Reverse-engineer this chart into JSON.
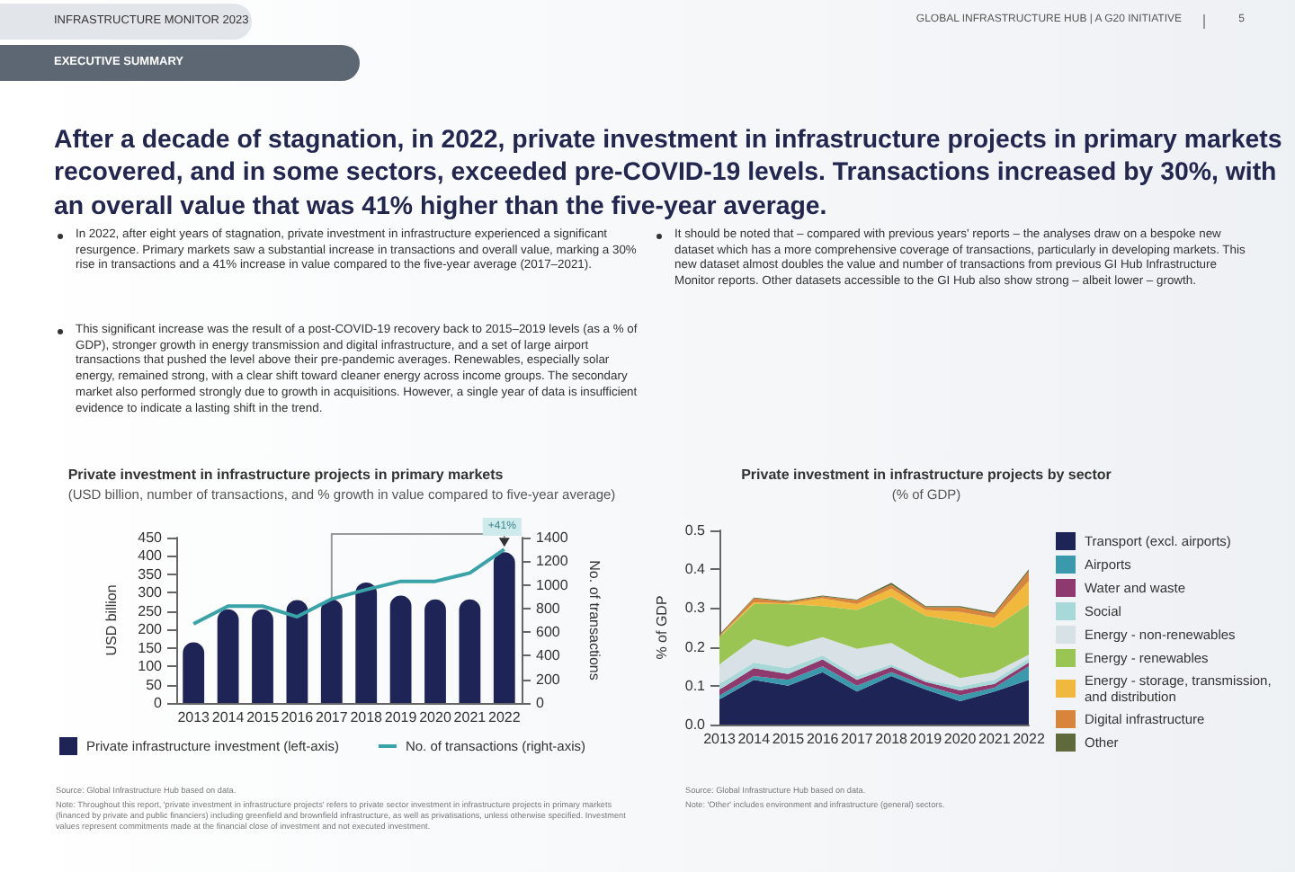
{
  "chart_data": [
    {
      "type": "bar",
      "title": "Private investment in infrastructure projects in primary markets",
      "subtitle": "(USD billion, number of transactions, and % growth in value compared to five-year average)",
      "ylabel": "USD billion",
      "y2label": "No. of transactions",
      "categories": [
        "2013",
        "2014",
        "2015",
        "2016",
        "2017",
        "2018",
        "2019",
        "2020",
        "2021",
        "2022"
      ],
      "series": [
        {
          "type": "bar",
          "name": "Private infrastructure investment (left-axis)",
          "color": "#1f2456",
          "values": [
            165,
            255,
            255,
            280,
            282,
            328,
            292,
            282,
            282,
            410
          ]
        },
        {
          "type": "line",
          "axis": "y2",
          "name": "No. of transactions (right-axis)",
          "color": "#3aa3a8",
          "values": [
            670,
            820,
            820,
            730,
            880,
            960,
            1030,
            1030,
            1100,
            1300
          ]
        }
      ],
      "ylim": [
        0,
        450
      ],
      "yticks": [
        0,
        50,
        100,
        150,
        200,
        250,
        300,
        350,
        400,
        450
      ],
      "y2lim": [
        0,
        1400
      ],
      "y2ticks": [
        0,
        200,
        400,
        600,
        800,
        1000,
        1200,
        1400
      ],
      "grid": false,
      "legend": "bottom",
      "marker": "none",
      "line_style": "solid",
      "annotations": [
        "INFRASTRUCTURE MONITOR 2023",
        "GLOBAL INFRASTRUCTURE HUB | A G20 INITIATIVE",
        "5",
        "EXECUTIVE SUMMARY",
        "After a decade of stagnation, in 2022, private investment in infrastructure projects in primary markets recovered, and in some sectors, exceeded pre-COVID-19 levels. Transactions increased by 30%, with an overall value that was 41% higher than the five-year average.",
        "In 2022, after eight years of stagnation, private investment in infrastructure experienced a significant resurgence. Primary markets saw a substantial increase in transactions and overall value, marking a 30% rise in transactions and a 41% increase in value compared to the five-year average (2017–2021).",
        "This significant increase was the result of a post-COVID-19 recovery back to 2015–2019 levels (as a % of GDP), stronger growth in energy transmission and digital infrastructure, and a set of large airport transactions that pushed the level above their pre-pandemic averages. Renewables, especially solar energy, remained strong, with a clear shift toward cleaner energy across income groups. The secondary market also performed strongly due to growth in acquisitions. However, a single year of data is insufficient evidence to indicate a lasting shift in the trend.",
        "Source: Global Infrastructure Hub based on data.",
        "Note: Throughout this report, 'private investment in infrastructure projects' refers to private sector investment in infrastructure projects in primary markets (financed by private and public financiers) including greenfield and brownfield infrastructure, as well as privatisations, unless otherwise specified. Investment values represent commitments made at the financial close of investment and not executed investment.",
        {
          "text": "+41%",
          "x": "2022",
          "y": 410
        }
      ]
    },
    {
      "type": "area",
      "stacked": true,
      "title": "Private investment in infrastructure projects by sector",
      "subtitle": "(% of GDP)",
      "ylabel": "% of GDP",
      "categories": [
        "2013",
        "2014",
        "2015",
        "2016",
        "2017",
        "2018",
        "2019",
        "2020",
        "2021",
        "2022"
      ],
      "series": [
        {
          "name": "Transport (excl. airports)",
          "color": "#1f2456",
          "values": [
            0.065,
            0.115,
            0.1,
            0.135,
            0.085,
            0.125,
            0.09,
            0.06,
            0.085,
            0.115
          ]
        },
        {
          "name": "Airports",
          "color": "#3a9aab",
          "values": [
            0.01,
            0.01,
            0.015,
            0.015,
            0.015,
            0.01,
            0.01,
            0.015,
            0.01,
            0.035
          ]
        },
        {
          "name": "Water and waste",
          "color": "#8e3a6e",
          "values": [
            0.015,
            0.02,
            0.015,
            0.018,
            0.015,
            0.013,
            0.01,
            0.013,
            0.01,
            0.01
          ]
        },
        {
          "name": "Social",
          "color": "#a8d8d8",
          "values": [
            0.015,
            0.015,
            0.015,
            0.01,
            0.01,
            0.007,
            0.005,
            0.01,
            0.01,
            0.01
          ]
        },
        {
          "name": "Energy - non-renewables",
          "color": "#d8e2e6",
          "values": [
            0.05,
            0.06,
            0.055,
            0.047,
            0.07,
            0.055,
            0.045,
            0.022,
            0.02,
            0.01
          ]
        },
        {
          "name": "Energy - renewables",
          "color": "#9bc553",
          "values": [
            0.07,
            0.09,
            0.11,
            0.08,
            0.1,
            0.12,
            0.12,
            0.145,
            0.115,
            0.13
          ]
        },
        {
          "name": "Energy - storage, transmission, and distribution",
          "color": "#f0b83c",
          "values": [
            0.002,
            0.005,
            0.002,
            0.02,
            0.015,
            0.02,
            0.015,
            0.025,
            0.025,
            0.06
          ]
        },
        {
          "name": "Digital infrastructure",
          "color": "#d8843a",
          "values": [
            0.003,
            0.01,
            0.004,
            0.005,
            0.01,
            0.01,
            0.007,
            0.012,
            0.01,
            0.025
          ]
        },
        {
          "name": "Other",
          "color": "#5e6a3a",
          "values": [
            0.002,
            0.002,
            0.002,
            0.002,
            0.002,
            0.005,
            0.003,
            0.003,
            0.003,
            0.005
          ]
        }
      ],
      "ylim": [
        0,
        0.5
      ],
      "yticks": [
        {
          "value": 0,
          "label": "0.0"
        },
        {
          "value": 0.1,
          "label": "0.1"
        },
        {
          "value": 0.2,
          "label": "0.2"
        },
        {
          "value": 0.3,
          "label": "0.3"
        },
        {
          "value": 0.4,
          "label": "0.4"
        },
        {
          "value": 0.5,
          "label": "0.5"
        }
      ],
      "grid": false,
      "legend": "right",
      "annotations": [
        "It should be noted that – compared with previous years' reports – the analyses draw on a bespoke new dataset which has a more comprehensive coverage of transactions, particularly in developing markets. This new dataset almost doubles the value and number of transactions from previous GI Hub Infrastructure Monitor reports. Other datasets accessible to the GI Hub also show strong – albeit lower – growth.",
        "Source: Global Infrastructure Hub based on data.",
        "Note: 'Other' includes environment and infrastructure (general) sectors."
      ]
    }
  ]
}
